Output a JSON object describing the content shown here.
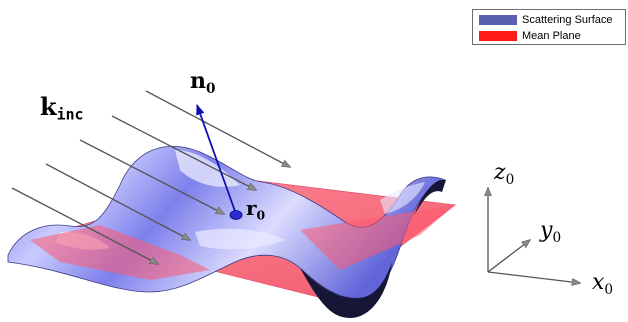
{
  "legend": {
    "items": [
      {
        "label": "Scattering Surface",
        "color": "#5b5fb0"
      },
      {
        "label": "Mean Plane",
        "color": "#ff1a1a"
      }
    ]
  },
  "labels": {
    "n0": {
      "base": "n",
      "sub": "0"
    },
    "r0": {
      "base": "r",
      "sub": "0"
    },
    "k_inc": {
      "base": "k",
      "sub": "inc"
    },
    "z0": {
      "base": "z",
      "sub": "0"
    },
    "y0": {
      "base": "y",
      "sub": "0"
    },
    "x0": {
      "base": "x",
      "sub": "0"
    }
  },
  "colors": {
    "surface": "#8080ee",
    "plane": "#ff6a7a",
    "normal": "#1010a0",
    "rays": "#555555"
  }
}
